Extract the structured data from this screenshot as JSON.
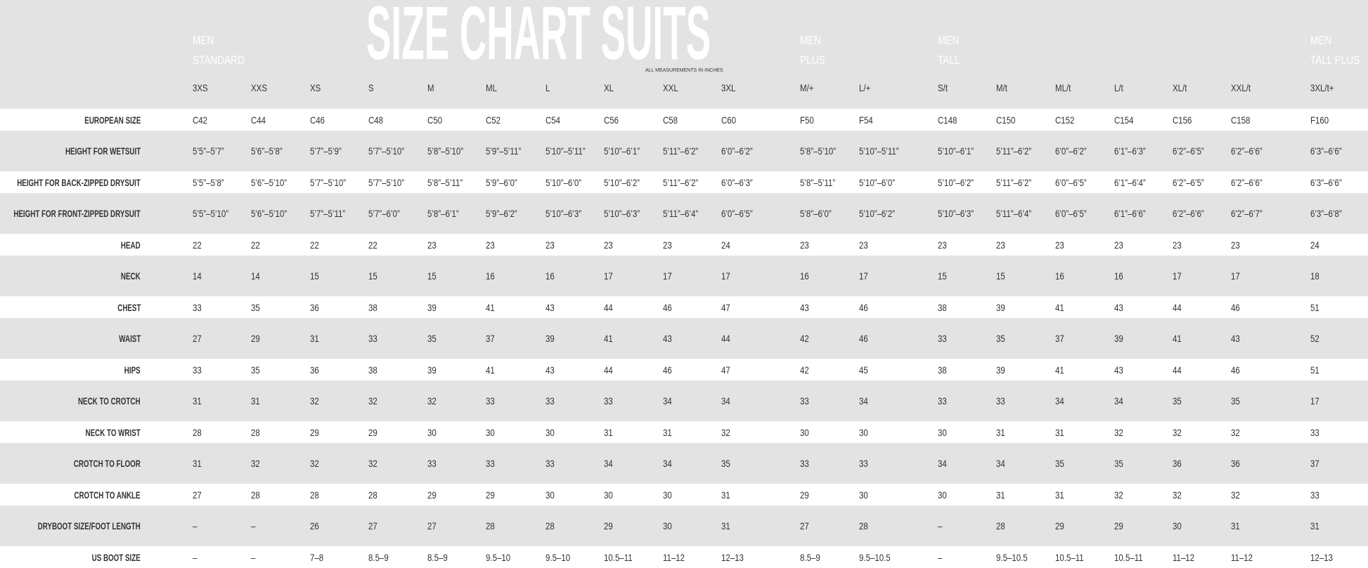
{
  "header": {
    "title": "SIZE CHART SUITS",
    "note": "ALL MEASUREMENTS IN INCHES",
    "groups": [
      {
        "lines": [
          "MEN",
          "STANDARD"
        ]
      },
      {
        "lines": [
          "MEN",
          "PLUS"
        ]
      },
      {
        "lines": [
          "MEN",
          "TALL"
        ]
      },
      {
        "lines": [
          "MEN",
          "TALL PLUS"
        ]
      }
    ]
  },
  "table": {
    "columns": [
      "3XS",
      "XXS",
      "XS",
      "S",
      "M",
      "ML",
      "L",
      "XL",
      "XXL",
      "3XL",
      "M/+",
      "L/+",
      "S/t",
      "M/t",
      "ML/t",
      "L/t",
      "XL/t",
      "XXL/t",
      "3XL/t+"
    ],
    "rows": [
      {
        "label": "EUROPEAN SIZE",
        "cells": [
          "C42",
          "C44",
          "C46",
          "C48",
          "C50",
          "C52",
          "C54",
          "C56",
          "C58",
          "C60",
          "F50",
          "F54",
          "C148",
          "C150",
          "C152",
          "C154",
          "C156",
          "C158",
          "F160"
        ]
      },
      {
        "label": "HEIGHT FOR WETSUIT",
        "cells": [
          "5’5”–5’7”",
          "5’6”–5’8”",
          "5’7”–5’9”",
          "5’7”–5’10”",
          "5’8”–5’10”",
          "5’9”–5’11”",
          "5’10”–5’11”",
          "5’10”–6’1”",
          "5’11”–6’2”",
          "6’0”–6’2”",
          "5’8”–5’10”",
          "5’10”–5’11”",
          "5’10”–6’1”",
          "5’11”–6’2”",
          "6’0”–6’2”",
          "6’1”–6’3”",
          "6’2”–6’5”",
          "6’2”–6’6”",
          "6’3”–6’6”"
        ]
      },
      {
        "label": "HEIGHT FOR BACK-ZIPPED DRYSUIT",
        "cells": [
          "5’5”–5’8”",
          "5’6”–5’10”",
          "5’7”–5’10”",
          "5’7”–5’10”",
          "5’8”–5’11”",
          "5’9”–6’0”",
          "5’10”–6’0”",
          "5’10”–6’2”",
          "5’11”–6’2”",
          "6’0”–6’3”",
          "5’8”–5’11”",
          "5’10”–6’0”",
          "5’10”–6’2”",
          "5’11”–6’2”",
          "6’0”–6’5”",
          "6’1”–6’4”",
          "6’2”–6’5”",
          "6’2”–6’6”",
          "6’3”–6’6”"
        ]
      },
      {
        "label": "HEIGHT FOR FRONT-ZIPPED DRYSUIT",
        "cells": [
          "5’5”–5’10”",
          "5’6”–5’10”",
          "5’7”–5’11”",
          "5’7”–6’0”",
          "5’8”–6’1”",
          "5’9”–6’2”",
          "5’10”–6’3”",
          "5’10”–6’3”",
          "5’11”–6’4”",
          "6’0”–6’5”",
          "5’8”–6’0”",
          "5’10”–6’2”",
          "5’10”–6’3”",
          "5’11”–6’4”",
          "6’0”–6’5”",
          "6’1”–6’6”",
          "6’2”–6’6”",
          "6’2”–6’7”",
          "6’3”–6’8”"
        ]
      },
      {
        "label": "HEAD",
        "cells": [
          "22",
          "22",
          "22",
          "22",
          "23",
          "23",
          "23",
          "23",
          "23",
          "24",
          "23",
          "23",
          "23",
          "23",
          "23",
          "23",
          "23",
          "23",
          "24"
        ]
      },
      {
        "label": "NECK",
        "cells": [
          "14",
          "14",
          "15",
          "15",
          "15",
          "16",
          "16",
          "17",
          "17",
          "17",
          "16",
          "17",
          "15",
          "15",
          "16",
          "16",
          "17",
          "17",
          "18"
        ]
      },
      {
        "label": "CHEST",
        "cells": [
          "33",
          "35",
          "36",
          "38",
          "39",
          "41",
          "43",
          "44",
          "46",
          "47",
          "43",
          "46",
          "38",
          "39",
          "41",
          "43",
          "44",
          "46",
          "51"
        ]
      },
      {
        "label": "WAIST",
        "cells": [
          "27",
          "29",
          "31",
          "33",
          "35",
          "37",
          "39",
          "41",
          "43",
          "44",
          "42",
          "46",
          "33",
          "35",
          "37",
          "39",
          "41",
          "43",
          "52"
        ]
      },
      {
        "label": "HIPS",
        "cells": [
          "33",
          "35",
          "36",
          "38",
          "39",
          "41",
          "43",
          "44",
          "46",
          "47",
          "42",
          "45",
          "38",
          "39",
          "41",
          "43",
          "44",
          "46",
          "51"
        ]
      },
      {
        "label": "NECK TO CROTCH",
        "cells": [
          "31",
          "31",
          "32",
          "32",
          "32",
          "33",
          "33",
          "33",
          "34",
          "34",
          "33",
          "34",
          "33",
          "33",
          "34",
          "34",
          "35",
          "35",
          "17"
        ]
      },
      {
        "label": "NECK TO WRIST",
        "cells": [
          "28",
          "28",
          "29",
          "29",
          "30",
          "30",
          "30",
          "31",
          "31",
          "32",
          "30",
          "30",
          "30",
          "31",
          "31",
          "32",
          "32",
          "32",
          "33"
        ]
      },
      {
        "label": "CROTCH TO FLOOR",
        "cells": [
          "31",
          "32",
          "32",
          "32",
          "33",
          "33",
          "33",
          "34",
          "34",
          "35",
          "33",
          "33",
          "34",
          "34",
          "35",
          "35",
          "36",
          "36",
          "37"
        ]
      },
      {
        "label": "CROTCH TO ANKLE",
        "cells": [
          "27",
          "28",
          "28",
          "28",
          "29",
          "29",
          "30",
          "30",
          "30",
          "31",
          "29",
          "30",
          "30",
          "31",
          "31",
          "32",
          "32",
          "32",
          "33"
        ]
      },
      {
        "label": "DRYBOOT SIZE/FOOT LENGTH",
        "cells": [
          "–",
          "–",
          "26",
          "27",
          "27",
          "28",
          "28",
          "29",
          "30",
          "31",
          "27",
          "28",
          "–",
          "28",
          "29",
          "29",
          "30",
          "31",
          "31"
        ]
      },
      {
        "label": "US BOOT SIZE",
        "cells": [
          "–",
          "–",
          "7–8",
          "8.5–9",
          "8.5–9",
          "9.5–10",
          "9.5–10",
          "10.5–11",
          "11–12",
          "12–13",
          "8.5–9",
          "9.5–10.5",
          "–",
          "9.5–10.5",
          "10.5–11",
          "10.5–11",
          "11–12",
          "11–12",
          "12–13"
        ]
      }
    ]
  }
}
